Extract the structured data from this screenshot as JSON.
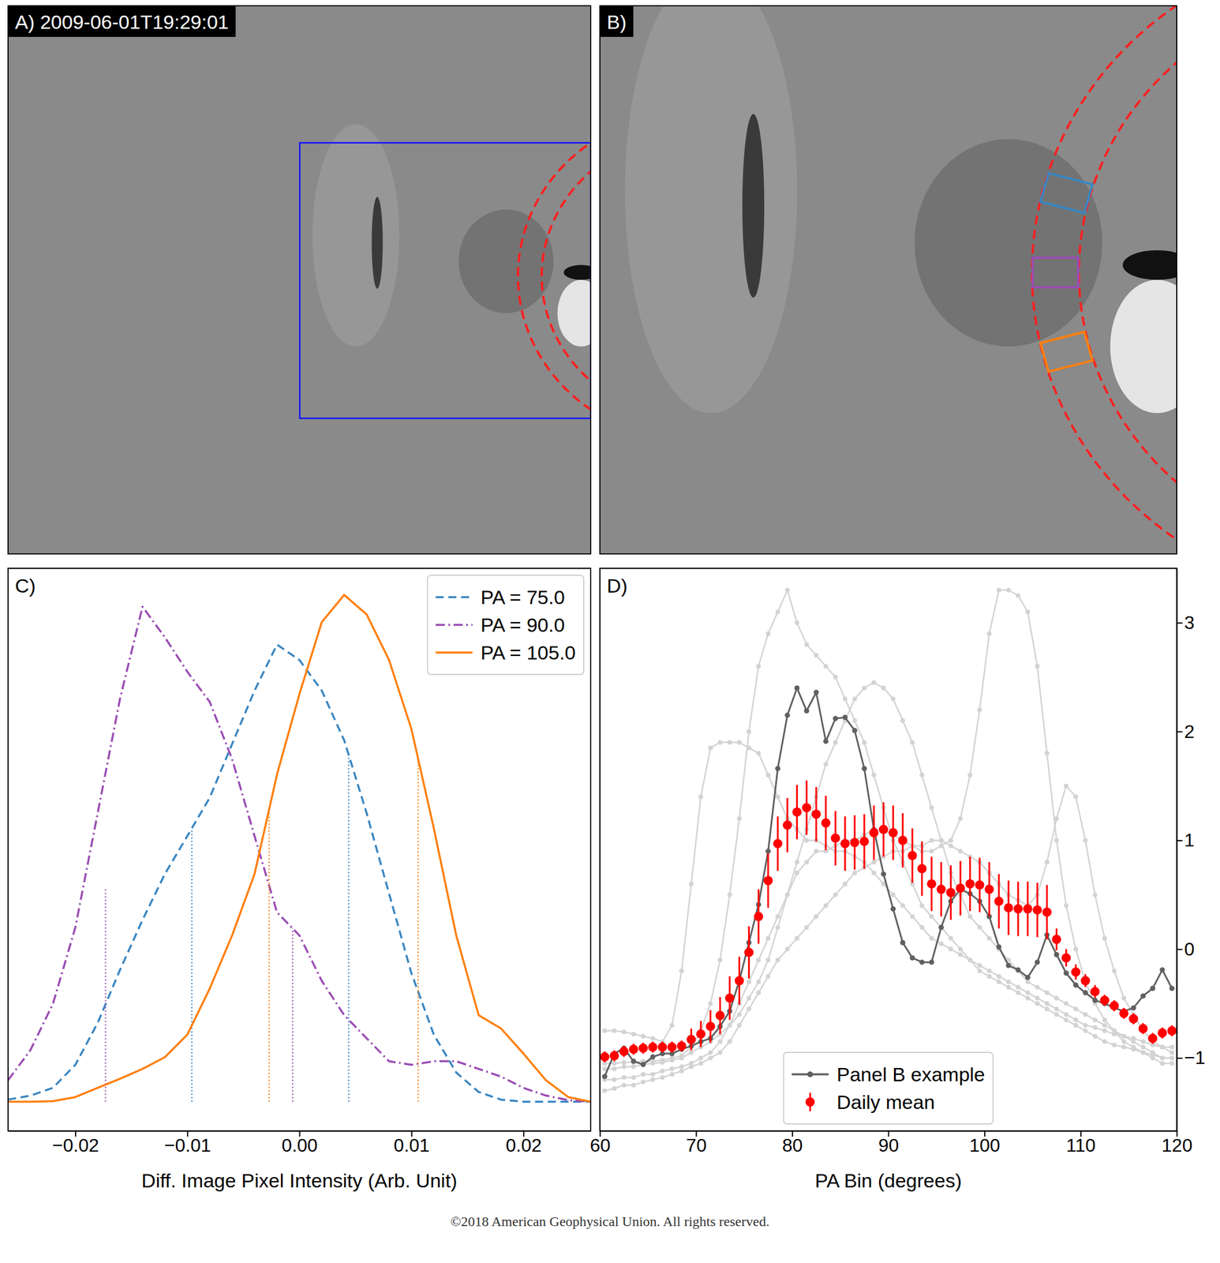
{
  "panels": [
    {
      "label": "A) 2009-06-01T19:29:01"
    },
    {
      "label": "B)"
    }
  ],
  "footer": "©2018 American Geophysical Union. All rights reserved.",
  "chart_data": [
    {
      "type": "line",
      "panel_label": "C)",
      "x_label": "Diff. Image Pixel Intensity (Arb. Unit)",
      "x": [
        -0.026,
        -0.024,
        -0.022,
        -0.02,
        -0.018,
        -0.016,
        -0.014,
        -0.012,
        -0.01,
        -0.008,
        -0.006,
        -0.004,
        -0.002,
        0,
        0.002,
        0.004,
        0.006,
        0.008,
        0.01,
        0.012,
        0.014,
        0.016,
        0.018,
        0.02,
        0.022,
        0.024,
        0.026
      ],
      "series": [
        {
          "name": "PA = 75.0",
          "color": "#3a86c1",
          "line_style": "dashed",
          "values": [
            0.004,
            0.012,
            0.027,
            0.072,
            0.154,
            0.258,
            0.355,
            0.445,
            0.519,
            0.594,
            0.699,
            0.803,
            0.893,
            0.863,
            0.803,
            0.706,
            0.564,
            0.407,
            0.251,
            0.131,
            0.057,
            0.019,
            0.004,
            0,
            0,
            0,
            0
          ],
          "quantiles": [
            -0.0096,
            0.0044
          ],
          "quantile_heights": [
            0.534,
            0.678
          ]
        },
        {
          "name": "PA = 90.0",
          "color": "#9a4db3",
          "line_style": "dashdot",
          "values": [
            0.042,
            0.101,
            0.191,
            0.34,
            0.564,
            0.788,
            0.967,
            0.907,
            0.84,
            0.781,
            0.669,
            0.519,
            0.37,
            0.325,
            0.236,
            0.169,
            0.124,
            0.079,
            0.072,
            0.079,
            0.079,
            0.064,
            0.049,
            0.027,
            0.012,
            0.003,
            0
          ],
          "quantiles": [
            -0.0173,
            -0.0006
          ],
          "quantile_heights": [
            0.418,
            0.339
          ]
        },
        {
          "name": "PA = 105.0",
          "color": "#ff7f0e",
          "line_style": "solid",
          "values": [
            0,
            0,
            0.001,
            0.009,
            0.027,
            0.045,
            0.064,
            0.087,
            0.131,
            0.221,
            0.325,
            0.445,
            0.639,
            0.796,
            0.937,
            0.99,
            0.952,
            0.863,
            0.728,
            0.534,
            0.325,
            0.169,
            0.143,
            0.094,
            0.042,
            0.009,
            0
          ],
          "quantiles": [
            -0.0027,
            0.0106
          ],
          "quantile_heights": [
            0.571,
            0.67
          ]
        }
      ],
      "xlim": [
        -0.026,
        0.026
      ],
      "xticks": [
        {
          "value": -0.02,
          "label": "−0.02"
        },
        {
          "value": -0.01,
          "label": "−0.01"
        },
        {
          "value": 0,
          "label": "0.00"
        },
        {
          "value": 0.01,
          "label": "0.01"
        },
        {
          "value": 0.02,
          "label": "0.02"
        }
      ],
      "ylim": [
        -0.057,
        1.042
      ],
      "tick_labels": "x",
      "legend": "upper right"
    },
    {
      "type": "line",
      "panel_label": "D)",
      "x_label": "PA Bin (degrees)",
      "x": [
        60.5,
        61.5,
        62.5,
        63.5,
        64.5,
        65.5,
        66.5,
        67.5,
        68.5,
        69.5,
        70.5,
        71.5,
        72.5,
        73.5,
        74.5,
        75.5,
        76.5,
        77.5,
        78.5,
        79.5,
        80.5,
        81.5,
        82.5,
        83.5,
        84.5,
        85.5,
        86.5,
        87.5,
        88.5,
        89.5,
        90.5,
        91.5,
        92.5,
        93.5,
        94.5,
        95.5,
        96.5,
        97.5,
        98.5,
        99.5,
        100.5,
        101.5,
        102.5,
        103.5,
        104.5,
        105.5,
        106.5,
        107.5,
        108.5,
        109.5,
        110.5,
        111.5,
        112.5,
        113.5,
        114.5,
        115.5,
        116.5,
        117.5,
        118.5,
        119.5
      ],
      "series": [
        {
          "color": "#d3d3d3",
          "marker": "dot",
          "values": [
            -1.05,
            -1.05,
            -1.04,
            -1.04,
            -1.03,
            -1.03,
            -1.02,
            -1.0,
            -0.98,
            -0.9,
            -0.75,
            -0.5,
            -0.1,
            0.5,
            1.2,
            2.0,
            2.6,
            2.9,
            3.1,
            3.3,
            3.0,
            2.8,
            2.7,
            2.6,
            2.5,
            2.3,
            2.1,
            1.9,
            1.6,
            1.3,
            1.0,
            0.8,
            0.6,
            0.4,
            0.3,
            0.2,
            0.1,
            0.0,
            -0.1,
            -0.2,
            -0.25,
            -0.3,
            -0.35,
            -0.4,
            -0.45,
            -0.5,
            -0.55,
            -0.6,
            -0.65,
            -0.7,
            -0.75,
            -0.8,
            -0.85,
            -0.88,
            -0.9,
            -0.92,
            -0.95,
            -0.97,
            -1.0,
            -1.0
          ]
        },
        {
          "color": "#d3d3d3",
          "marker": "dot",
          "values": [
            -1.2,
            -1.2,
            -1.18,
            -1.18,
            -1.15,
            -1.15,
            -1.12,
            -1.1,
            -1.08,
            -1.05,
            -1.0,
            -0.95,
            -0.85,
            -0.7,
            -0.5,
            -0.3,
            -0.1,
            0.1,
            0.3,
            0.5,
            0.7,
            0.8,
            0.9,
            0.9,
            0.95,
            1.0,
            1.0,
            1.05,
            1.1,
            1.1,
            1.05,
            1.0,
            0.95,
            0.9,
            0.9,
            0.95,
            1.0,
            1.2,
            1.6,
            2.2,
            2.9,
            3.3,
            3.3,
            3.25,
            3.1,
            2.6,
            1.8,
            1.0,
            0.4,
            0.0,
            -0.3,
            -0.5,
            -0.65,
            -0.75,
            -0.85,
            -0.9,
            -0.95,
            -1.0,
            -1.05,
            -1.05
          ]
        },
        {
          "color": "#d3d3d3",
          "marker": "dot",
          "values": [
            -1.1,
            -1.1,
            -1.08,
            -1.08,
            -1.06,
            -1.05,
            -1.04,
            -1.02,
            -1.0,
            -0.95,
            -0.9,
            -0.85,
            -0.78,
            -0.7,
            -0.6,
            -0.45,
            -0.3,
            -0.1,
            0.2,
            0.5,
            0.8,
            1.1,
            1.4,
            1.7,
            1.9,
            2.1,
            2.3,
            2.4,
            2.45,
            2.4,
            2.3,
            2.1,
            1.9,
            1.6,
            1.3,
            1.0,
            0.7,
            0.5,
            0.3,
            0.2,
            0.1,
            0.0,
            -0.1,
            -0.2,
            -0.3,
            -0.35,
            -0.4,
            -0.45,
            -0.5,
            -0.55,
            -0.6,
            -0.65,
            -0.7,
            -0.75,
            -0.8,
            -0.85,
            -0.9,
            -0.95,
            -1.0,
            -1.0
          ]
        },
        {
          "color": "#d3d3d3",
          "marker": "dot",
          "values": [
            -0.75,
            -0.75,
            -0.76,
            -0.78,
            -0.8,
            -0.82,
            -0.85,
            -0.7,
            -0.2,
            0.6,
            1.4,
            1.85,
            1.9,
            1.9,
            1.9,
            1.85,
            1.8,
            1.6,
            1.4,
            1.2,
            1.1,
            1.0,
            1.0,
            0.95,
            0.9,
            0.9,
            0.85,
            0.8,
            0.7,
            0.6,
            0.5,
            0.4,
            0.3,
            0.2,
            0.1,
            0.05,
            0.0,
            -0.05,
            -0.1,
            -0.15,
            -0.2,
            -0.25,
            -0.3,
            -0.35,
            -0.4,
            -0.45,
            -0.5,
            -0.55,
            -0.6,
            -0.65,
            -0.7,
            -0.72,
            -0.75,
            -0.78,
            -0.8,
            -0.82,
            -0.85,
            -0.88,
            -0.9,
            -0.9
          ]
        },
        {
          "color": "#d3d3d3",
          "marker": "dot",
          "values": [
            -1.3,
            -1.28,
            -1.25,
            -1.25,
            -1.22,
            -1.2,
            -1.18,
            -1.15,
            -1.12,
            -1.08,
            -1.05,
            -1.0,
            -0.95,
            -0.85,
            -0.7,
            -0.55,
            -0.4,
            -0.25,
            -0.1,
            0.0,
            0.1,
            0.2,
            0.3,
            0.4,
            0.5,
            0.6,
            0.7,
            0.75,
            0.8,
            0.85,
            0.9,
            0.9,
            0.95,
            0.95,
            1.0,
            1.0,
            0.95,
            0.9,
            0.85,
            0.8,
            0.7,
            0.6,
            0.5,
            0.45,
            0.4,
            0.5,
            0.8,
            1.2,
            1.5,
            1.4,
            1.0,
            0.5,
            0.1,
            -0.2,
            -0.45,
            -0.6,
            -0.75,
            -0.85,
            -0.9,
            -0.95
          ]
        },
        {
          "name": "Panel B example",
          "color": "#606060",
          "marker": "dot",
          "values": [
            -1.17,
            -0.96,
            -0.91,
            -1.03,
            -1.06,
            -0.99,
            -0.96,
            -0.96,
            -0.92,
            -0.89,
            -0.85,
            -0.82,
            -0.71,
            -0.57,
            -0.29,
            0.06,
            0.41,
            0.9,
            1.66,
            2.15,
            2.4,
            2.19,
            2.36,
            1.91,
            2.12,
            2.13,
            2.01,
            1.66,
            1.1,
            0.69,
            0.37,
            0.06,
            -0.08,
            -0.12,
            -0.12,
            0.2,
            0.44,
            0.55,
            0.51,
            0.44,
            0.3,
            0.02,
            -0.15,
            -0.19,
            -0.26,
            -0.12,
            0.13,
            -0.05,
            -0.22,
            -0.33,
            -0.4,
            -0.47,
            -0.5,
            -0.54,
            -0.57,
            -0.54,
            -0.43,
            -0.36,
            -0.19,
            -0.36
          ]
        },
        {
          "name": "Daily mean",
          "color": "#ff0000",
          "type": "errorbar",
          "marker": "dot",
          "values": [
            -0.99,
            -0.98,
            -0.94,
            -0.92,
            -0.91,
            -0.9,
            -0.9,
            -0.9,
            -0.89,
            -0.83,
            -0.78,
            -0.71,
            -0.61,
            -0.45,
            -0.29,
            -0.03,
            0.3,
            0.63,
            0.97,
            1.14,
            1.26,
            1.3,
            1.24,
            1.16,
            1.02,
            0.97,
            0.98,
            0.99,
            1.07,
            1.1,
            1.07,
            1.0,
            0.86,
            0.74,
            0.6,
            0.55,
            0.52,
            0.56,
            0.6,
            0.59,
            0.55,
            0.44,
            0.38,
            0.37,
            0.37,
            0.36,
            0.34,
            0.09,
            -0.08,
            -0.21,
            -0.29,
            -0.39,
            -0.47,
            -0.52,
            -0.59,
            -0.64,
            -0.73,
            -0.82,
            -0.77,
            -0.75
          ],
          "errors": [
            0.05,
            0.05,
            0.05,
            0.05,
            0.05,
            0.05,
            0.05,
            0.05,
            0.05,
            0.1,
            0.12,
            0.15,
            0.17,
            0.2,
            0.22,
            0.24,
            0.25,
            0.25,
            0.25,
            0.25,
            0.25,
            0.25,
            0.25,
            0.25,
            0.25,
            0.25,
            0.25,
            0.25,
            0.25,
            0.25,
            0.25,
            0.25,
            0.25,
            0.25,
            0.25,
            0.25,
            0.25,
            0.25,
            0.25,
            0.25,
            0.25,
            0.25,
            0.25,
            0.25,
            0.25,
            0.25,
            0.25,
            0.1,
            0.08,
            0.07,
            0.06,
            0.06,
            0.05,
            0.05,
            0.05,
            0.05,
            0.05,
            0.05,
            0.05,
            0.05
          ]
        }
      ],
      "xlim": [
        60,
        120
      ],
      "xticks": [
        60,
        70,
        80,
        90,
        100,
        110,
        120
      ],
      "ylim": [
        -1.67,
        3.5
      ],
      "yticks": [
        {
          "value": -1,
          "label": "−1"
        },
        0,
        1,
        2,
        3
      ],
      "legend": "lower center"
    }
  ]
}
